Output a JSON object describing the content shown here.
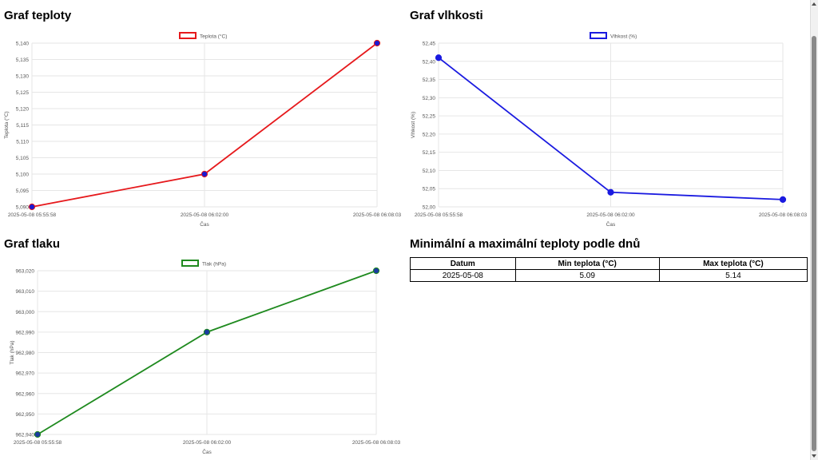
{
  "sections": {
    "temp_title": "Graf teploty",
    "hum_title": "Graf vlhkosti",
    "press_title": "Graf tlaku",
    "table_title": "Minimální a maximální teploty podle dnů"
  },
  "table": {
    "headers": [
      "Datum",
      "Min teplota (°C)",
      "Max teplota (°C)"
    ],
    "rows": [
      [
        "2025-05-08",
        "5.09",
        "5.14"
      ]
    ]
  },
  "chart_data": [
    {
      "id": "temp",
      "type": "line",
      "x": [
        "2025-05-08 05:55:58",
        "2025-05-08 06:02:00",
        "2025-05-08 06:08:03"
      ],
      "series": [
        {
          "name": "Teplota (°C)",
          "values": [
            5.09,
            5.1,
            5.14
          ],
          "color": "#e6191c",
          "point_color": "#1a1ad0"
        }
      ],
      "xlabel": "Čas",
      "ylabel": "Teplota (°C)",
      "ylim": [
        5.09,
        5.14
      ],
      "yticks": [
        "5,090",
        "5,095",
        "5,100",
        "5,105",
        "5,110",
        "5,115",
        "5,120",
        "5,125",
        "5,130",
        "5,135",
        "5,140"
      ],
      "grid": true,
      "legend": "top"
    },
    {
      "id": "hum",
      "type": "line",
      "x": [
        "2025-05-08 05:55:58",
        "2025-05-08 06:02:00",
        "2025-05-08 06:08:03"
      ],
      "series": [
        {
          "name": "Vlhkost (%)",
          "values": [
            52.41,
            52.04,
            52.02
          ],
          "color": "#1a1ae0",
          "point_color": "#1a1ae0"
        }
      ],
      "xlabel": "Čas",
      "ylabel": "Vlhkost (%)",
      "ylim": [
        52.0,
        52.45
      ],
      "yticks": [
        "52,00",
        "52,05",
        "52,10",
        "52,15",
        "52,20",
        "52,25",
        "52,30",
        "52,35",
        "52,40",
        "52,45"
      ],
      "grid": true,
      "legend": "top"
    },
    {
      "id": "press",
      "type": "line",
      "x": [
        "2025-05-08 05:55:58",
        "2025-05-08 06:02:00",
        "2025-05-08 06:08:03"
      ],
      "series": [
        {
          "name": "Tlak (hPa)",
          "values": [
            962.94,
            962.99,
            963.02
          ],
          "color": "#1f8a1f",
          "point_color": "#1a3aa0"
        }
      ],
      "xlabel": "Čas",
      "ylabel": "Tlak (hPa)",
      "ylim": [
        962.94,
        963.02
      ],
      "yticks": [
        "962,940",
        "962,950",
        "962,960",
        "962,970",
        "962,980",
        "962,990",
        "963,000",
        "963,010",
        "963,020"
      ],
      "grid": true,
      "legend": "top"
    }
  ]
}
